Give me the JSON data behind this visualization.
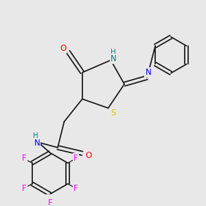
{
  "background_color": "#e8e8e8",
  "bond_color": "#1a1a1a",
  "colors": {
    "N": "#0000ff",
    "NH": "#008080",
    "O": "#ff0000",
    "S": "#cccc00",
    "F": "#ff00ff",
    "C": "#1a1a1a"
  },
  "font_size_atom": 8.5,
  "lw": 1.3
}
